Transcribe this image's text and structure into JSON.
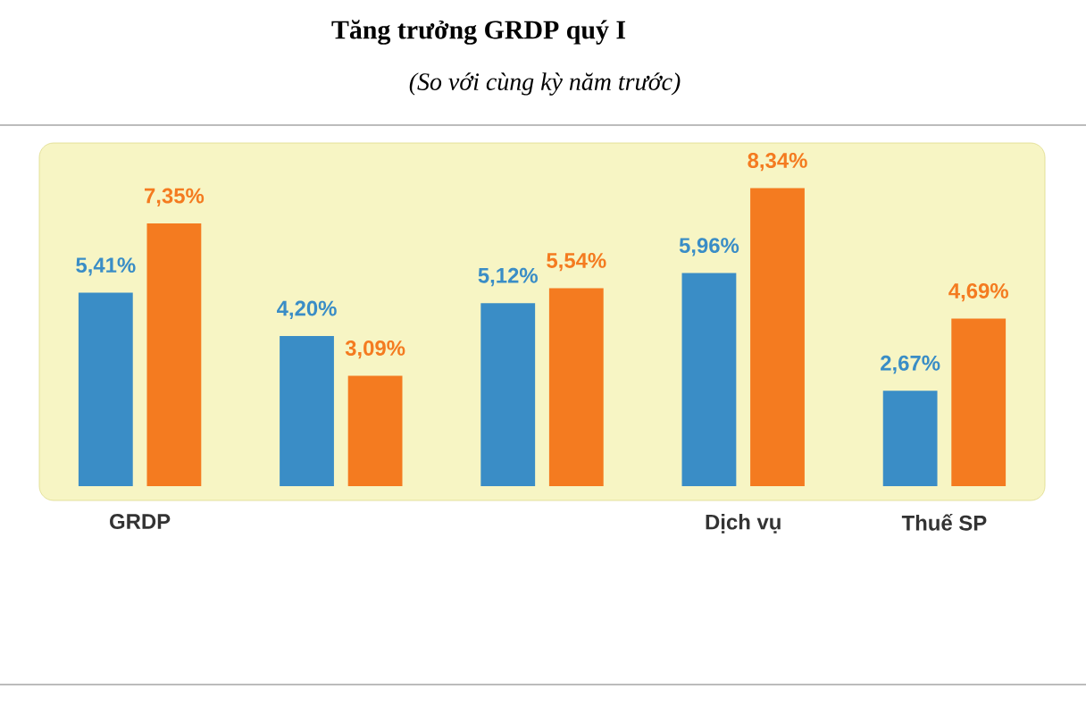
{
  "chart_data": {
    "type": "bar",
    "title": "Tăng trưởng GRDP quý I",
    "subtitle": "(So với cùng kỳ năm trước)",
    "categories": [
      "GRDP",
      null,
      null,
      "Dịch vụ",
      "Thuế SP"
    ],
    "series": [
      {
        "color": "#3a8dc6",
        "values": [
          5.41,
          4.2,
          5.12,
          5.96,
          2.67
        ],
        "value_labels": [
          "5,41%",
          "4,20%",
          "5,12%",
          "5,96%",
          "2,67%"
        ]
      },
      {
        "color": "#f47b20",
        "values": [
          7.35,
          3.09,
          5.54,
          8.34,
          4.69
        ],
        "value_labels": [
          "7,35%",
          "3,09%",
          "5,54%",
          "8,34%",
          "4,69%"
        ]
      }
    ]
  }
}
